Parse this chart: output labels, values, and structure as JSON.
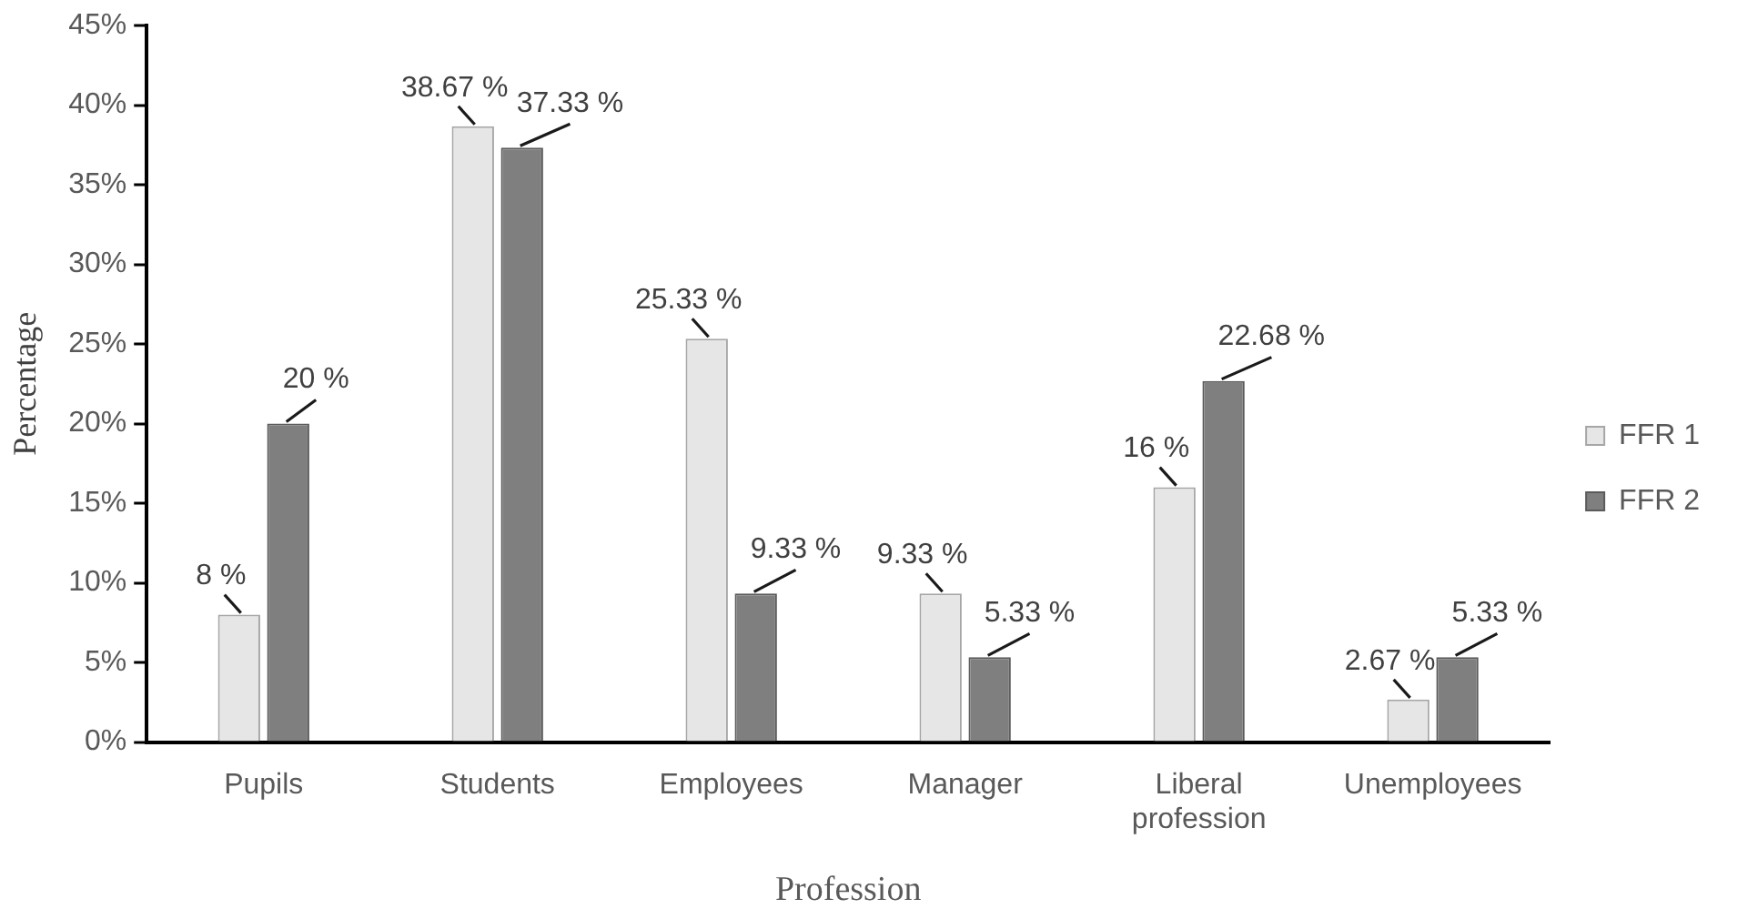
{
  "chart_data": {
    "type": "bar",
    "xlabel": "Profession",
    "ylabel": "Percentage",
    "categories": [
      "Pupils",
      "Students",
      "Employees",
      "Manager",
      "Liberal profession",
      "Unemployees"
    ],
    "series": [
      {
        "name": "FFR 1",
        "color": "#e6e6e6",
        "values": [
          8,
          38.67,
          25.33,
          9.33,
          16,
          2.67
        ],
        "value_labels": [
          "8 %",
          "38.67 %",
          "25.33 %",
          "9.33 %",
          "16 %",
          "2.67 %"
        ]
      },
      {
        "name": "FFR 2",
        "color": "#7f7f7f",
        "values": [
          20,
          37.33,
          9.33,
          5.33,
          22.68,
          5.33
        ],
        "value_labels": [
          "20 %",
          "37.33 %",
          "9.33 %",
          "5.33 %",
          "22.68 %",
          "5.33 %"
        ]
      }
    ],
    "ylim": [
      0,
      45
    ],
    "yticks": [
      {
        "value": 0,
        "label": "0%"
      },
      {
        "value": 5,
        "label": "5%"
      },
      {
        "value": 10,
        "label": "10%"
      },
      {
        "value": 15,
        "label": "15%"
      },
      {
        "value": 20,
        "label": "20%"
      },
      {
        "value": 25,
        "label": "25%"
      },
      {
        "value": 30,
        "label": "30%"
      },
      {
        "value": 35,
        "label": "35%"
      },
      {
        "value": 40,
        "label": "40%"
      },
      {
        "value": 45,
        "label": "45%"
      }
    ],
    "grid": false,
    "legend": "right"
  }
}
